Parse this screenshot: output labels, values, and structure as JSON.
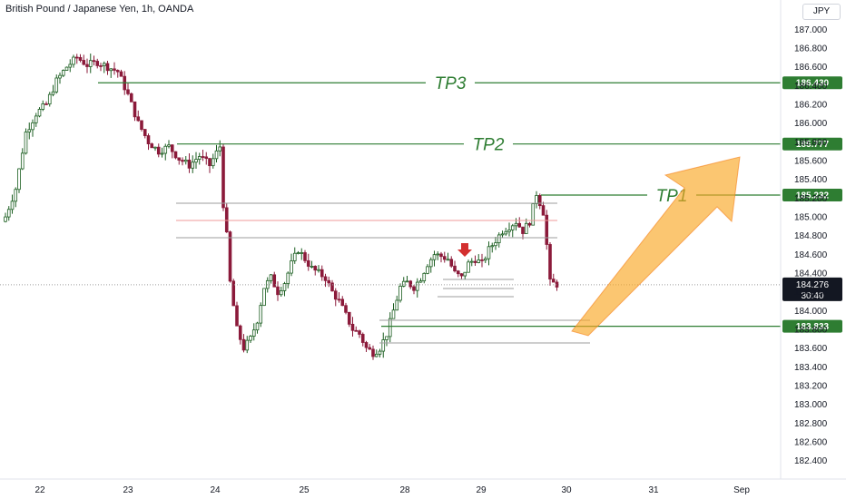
{
  "header": {
    "title": "British Pound / Japanese Yen, 1h, OANDA",
    "currency": "JPY"
  },
  "colors": {
    "up": "#26a69a",
    "down": "#8b1a3a",
    "bull_body": "#1b5e20",
    "tp_line": "#2e7d32",
    "tp_label_bg": "#2e7d32",
    "arrow_fill": "#f9a825",
    "marker": "#d32f2f",
    "price_tag_bg": "#131722"
  },
  "chart_data": {
    "type": "candlestick",
    "x_ticks": [
      "22",
      "23",
      "24",
      "25",
      "28",
      "29",
      "30",
      "31",
      "Sep"
    ],
    "ylim": [
      182.3,
      187.1
    ],
    "y_ticks": [
      "187.000",
      "186.800",
      "186.600",
      "186.400",
      "186.200",
      "186.000",
      "185.800",
      "185.600",
      "185.400",
      "185.200",
      "185.000",
      "184.800",
      "184.600",
      "184.400",
      "184.200",
      "184.000",
      "183.800",
      "183.600",
      "183.400",
      "183.200",
      "183.000",
      "182.800",
      "182.600",
      "182.400"
    ],
    "levels": [
      {
        "name": "TP3",
        "value": 186.43,
        "label": "186.430"
      },
      {
        "name": "TP2",
        "value": 185.777,
        "label": "185.777"
      },
      {
        "name": "TP1",
        "value": 185.232,
        "label": "185.232"
      },
      {
        "name": "",
        "value": 183.833,
        "label": "183.833"
      }
    ],
    "current_price": {
      "value": 184.276,
      "label": "184.276",
      "countdown": "30:40"
    },
    "close_path": [
      [
        0,
        185.0
      ],
      [
        3,
        185.3
      ],
      [
        6,
        185.9
      ],
      [
        9,
        186.1
      ],
      [
        12,
        186.2
      ],
      [
        15,
        186.45
      ],
      [
        18,
        186.6
      ],
      [
        21,
        186.7
      ],
      [
        24,
        186.62
      ],
      [
        27,
        186.65
      ],
      [
        30,
        186.6
      ],
      [
        33,
        186.55
      ],
      [
        36,
        186.3
      ],
      [
        39,
        186.0
      ],
      [
        42,
        185.8
      ],
      [
        45,
        185.7
      ],
      [
        48,
        185.75
      ],
      [
        51,
        185.62
      ],
      [
        54,
        185.55
      ],
      [
        57,
        185.65
      ],
      [
        60,
        185.55
      ],
      [
        63,
        185.75
      ],
      [
        63.5,
        185.3
      ],
      [
        65,
        184.8
      ],
      [
        66,
        184.3
      ],
      [
        68,
        183.8
      ],
      [
        70,
        183.6
      ],
      [
        72,
        183.7
      ],
      [
        74,
        183.9
      ],
      [
        76,
        184.25
      ],
      [
        78,
        184.35
      ],
      [
        80,
        184.2
      ],
      [
        82,
        184.3
      ],
      [
        84,
        184.5
      ],
      [
        86,
        184.65
      ],
      [
        88,
        184.55
      ],
      [
        90,
        184.45
      ],
      [
        92,
        184.4
      ],
      [
        94,
        184.35
      ],
      [
        96,
        184.2
      ],
      [
        98,
        184.1
      ],
      [
        100,
        183.95
      ],
      [
        102,
        183.8
      ],
      [
        104,
        183.75
      ],
      [
        106,
        183.6
      ],
      [
        108,
        183.55
      ],
      [
        110,
        183.6
      ],
      [
        112,
        183.75
      ],
      [
        114,
        184.0
      ],
      [
        116,
        184.25
      ],
      [
        118,
        184.3
      ],
      [
        120,
        184.25
      ],
      [
        122,
        184.35
      ],
      [
        124,
        184.5
      ],
      [
        126,
        184.6
      ],
      [
        128,
        184.58
      ],
      [
        130,
        184.55
      ],
      [
        132,
        184.4
      ],
      [
        134,
        184.35
      ],
      [
        136,
        184.5
      ],
      [
        138,
        184.55
      ],
      [
        140,
        184.5
      ],
      [
        142,
        184.65
      ],
      [
        144,
        184.75
      ],
      [
        146,
        184.85
      ],
      [
        148,
        184.9
      ],
      [
        150,
        184.95
      ],
      [
        152,
        184.85
      ],
      [
        154,
        184.95
      ],
      [
        156,
        185.25
      ],
      [
        158,
        185.05
      ],
      [
        159,
        184.7
      ],
      [
        160,
        184.3
      ],
      [
        162,
        184.28
      ]
    ]
  }
}
